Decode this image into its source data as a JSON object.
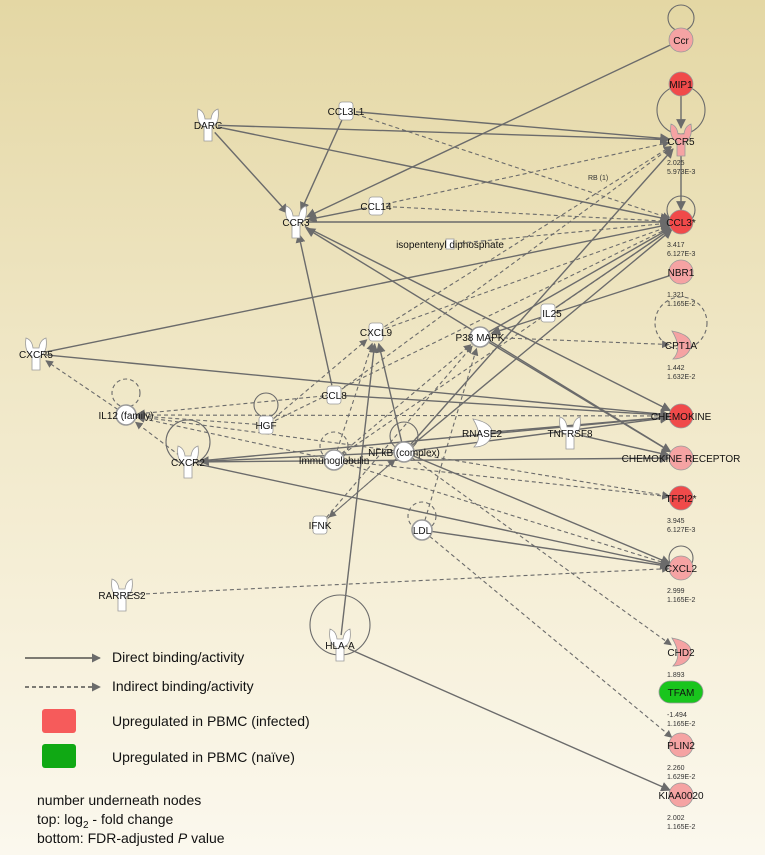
{
  "colors": {
    "upregulated_infected": "#f04a4a",
    "upregulated_infected_light": "#f5a3a3",
    "upregulated_naive": "#19c51d",
    "neutral_node": "#ffffff",
    "edge": "#6b6b6b"
  },
  "nodes": [
    {
      "id": "Ccr",
      "label": "Ccr",
      "shape": "circle",
      "color": "light"
    },
    {
      "id": "MIP1",
      "label": "MIP1",
      "shape": "circle",
      "color": "red"
    },
    {
      "id": "CCR5",
      "label": "CCR5",
      "shape": "receptor",
      "color": "light",
      "values": [
        "2.025",
        "5.973E-3"
      ]
    },
    {
      "id": "CCL3",
      "label": "CCL3*",
      "shape": "circle",
      "color": "red",
      "values": [
        "3.417",
        "6.127E-3"
      ]
    },
    {
      "id": "NBR1",
      "label": "NBR1",
      "shape": "circle",
      "color": "light",
      "values": [
        "1.321",
        "1.165E-2"
      ]
    },
    {
      "id": "CPT1A",
      "label": "CPT1A",
      "shape": "enzyme",
      "color": "light",
      "values": [
        "1.442",
        "1.632E-2"
      ]
    },
    {
      "id": "CHEMOKINE",
      "label": "CHEMOKINE",
      "shape": "circle",
      "color": "red"
    },
    {
      "id": "CHEMR",
      "label": "CHEMOKINE RECEPTOR",
      "shape": "circle",
      "color": "light"
    },
    {
      "id": "TFPI2",
      "label": "TFPI2*",
      "shape": "circle",
      "color": "red",
      "values": [
        "3.945",
        "6.127E-3"
      ]
    },
    {
      "id": "CXCL2",
      "label": "CXCL2",
      "shape": "circle",
      "color": "light",
      "values": [
        "2.999",
        "1.165E-2"
      ]
    },
    {
      "id": "CHD2",
      "label": "CHD2",
      "shape": "enzyme",
      "color": "light",
      "values": [
        "1.893",
        "1.165E-2"
      ]
    },
    {
      "id": "TFAM",
      "label": "TFAM",
      "shape": "pill",
      "color": "green",
      "values": [
        "-1.494",
        "1.165E-2"
      ]
    },
    {
      "id": "PLIN2",
      "label": "PLIN2",
      "shape": "circle",
      "color": "light",
      "values": [
        "2.260",
        "1.629E-2"
      ]
    },
    {
      "id": "KIAA0020",
      "label": "KIAA0020",
      "shape": "circle",
      "color": "light",
      "values": [
        "2.002",
        "1.165E-2"
      ]
    },
    {
      "id": "DARC",
      "label": "DARC",
      "shape": "receptor",
      "color": "white"
    },
    {
      "id": "CCL3L1",
      "label": "CCL3L1",
      "shape": "cytokine",
      "color": "white"
    },
    {
      "id": "CCR3",
      "label": "CCR3",
      "shape": "receptor",
      "color": "white"
    },
    {
      "id": "CCL14",
      "label": "CCL14",
      "shape": "cytokine",
      "color": "white"
    },
    {
      "id": "IPP",
      "label": "isopentenyl diphosphate",
      "shape": "small",
      "color": "white"
    },
    {
      "id": "IL25",
      "label": "IL25",
      "shape": "cytokine",
      "color": "white"
    },
    {
      "id": "CXCL9",
      "label": "CXCL9",
      "shape": "cytokine",
      "color": "white"
    },
    {
      "id": "P38",
      "label": "P38 MAPK",
      "shape": "group",
      "color": "white"
    },
    {
      "id": "CXCR5",
      "label": "CXCR5",
      "shape": "receptor",
      "color": "white"
    },
    {
      "id": "IL12",
      "label": "IL12 (family)",
      "shape": "group",
      "color": "white"
    },
    {
      "id": "CCL8",
      "label": "CCL8",
      "shape": "cytokine",
      "color": "white"
    },
    {
      "id": "HGF",
      "label": "HGF",
      "shape": "cytokine",
      "color": "white"
    },
    {
      "id": "CXCR2",
      "label": "CXCR2",
      "shape": "receptor",
      "color": "white"
    },
    {
      "id": "IG",
      "label": "Immunoglobulin",
      "shape": "group",
      "color": "white"
    },
    {
      "id": "NFKB",
      "label": "NFkB (complex)",
      "shape": "group",
      "color": "white"
    },
    {
      "id": "RNASE2",
      "label": "RNASE2",
      "shape": "enzyme",
      "color": "white"
    },
    {
      "id": "TNFRSF8",
      "label": "TNFRSF8",
      "shape": "receptor",
      "color": "white"
    },
    {
      "id": "IFNK",
      "label": "IFNK",
      "shape": "cytokine",
      "color": "white"
    },
    {
      "id": "LDL",
      "label": "LDL",
      "shape": "group",
      "color": "white"
    },
    {
      "id": "RARRES2",
      "label": "RARRES2",
      "shape": "receptor",
      "color": "white"
    },
    {
      "id": "HLAA",
      "label": "HLA-A",
      "shape": "receptor",
      "color": "white"
    }
  ],
  "edge_annotation": "RB (1)",
  "edges": [
    {
      "from": "Ccr",
      "to": "CCR3",
      "dashed": false
    },
    {
      "from": "MIP1",
      "to": "CCR5",
      "dashed": false
    },
    {
      "from": "CCR5",
      "to": "CCL3",
      "dashed": false
    },
    {
      "from": "DARC",
      "to": "CCR5",
      "dashed": false
    },
    {
      "from": "DARC",
      "to": "CCL3",
      "dashed": false
    },
    {
      "from": "DARC",
      "to": "CCR3",
      "dashed": false
    },
    {
      "from": "CCL3L1",
      "to": "CCR5",
      "dashed": false
    },
    {
      "from": "CCL3L1",
      "to": "CCL3",
      "dashed": true
    },
    {
      "from": "CCL3L1",
      "to": "CCR3",
      "dashed": false
    },
    {
      "from": "CCL14",
      "to": "CCR5",
      "dashed": true
    },
    {
      "from": "CCL14",
      "to": "CCL3",
      "dashed": true
    },
    {
      "from": "CCL14",
      "to": "CCR3",
      "dashed": false
    },
    {
      "from": "CCR3",
      "to": "CCL3",
      "dashed": false
    },
    {
      "from": "CCR3",
      "to": "CHEMOKINE",
      "dashed": false
    },
    {
      "from": "CHEMR",
      "to": "CCR3",
      "dashed": false
    },
    {
      "from": "IPP",
      "to": "CCL3",
      "dashed": true
    },
    {
      "from": "CXCL9",
      "to": "CCR5",
      "dashed": true
    },
    {
      "from": "CXCL9",
      "to": "CCL3",
      "dashed": true
    },
    {
      "from": "P38",
      "to": "CCL3",
      "dashed": false
    },
    {
      "from": "P38",
      "to": "CPT1A",
      "dashed": true
    },
    {
      "from": "NBR1",
      "to": "P38",
      "dashed": false
    },
    {
      "from": "IL25",
      "to": "CCL3",
      "dashed": false
    },
    {
      "from": "CXCR5",
      "to": "CCL3",
      "dashed": false
    },
    {
      "from": "CXCR5",
      "to": "CHEMOKINE",
      "dashed": false
    },
    {
      "from": "IL12",
      "to": "CXCR5",
      "dashed": true
    },
    {
      "from": "IL12",
      "to": "CHEMOKINE",
      "dashed": true
    },
    {
      "from": "CCL8",
      "to": "IL12",
      "dashed": true
    },
    {
      "from": "CCL8",
      "to": "CCR3",
      "dashed": false
    },
    {
      "from": "CCL8",
      "to": "CCR5",
      "dashed": true
    },
    {
      "from": "CCL8",
      "to": "CHEMOKINE",
      "dashed": false
    },
    {
      "from": "HGF",
      "to": "IL12",
      "dashed": true
    },
    {
      "from": "HGF",
      "to": "CXCL9",
      "dashed": true
    },
    {
      "from": "HGF",
      "to": "CCL3",
      "dashed": true
    },
    {
      "from": "CXCR2",
      "to": "CXCL2",
      "dashed": false
    },
    {
      "from": "CXCR2",
      "to": "CHEMOKINE",
      "dashed": false
    },
    {
      "from": "CXCR2",
      "to": "CHEMR",
      "dashed": false
    },
    {
      "from": "IG",
      "to": "CCL3",
      "dashed": true
    },
    {
      "from": "IG",
      "to": "CXCL9",
      "dashed": true
    },
    {
      "from": "IG",
      "to": "CXCL2",
      "dashed": true
    },
    {
      "from": "IG",
      "to": "IL12",
      "dashed": true
    },
    {
      "from": "IG",
      "to": "P38",
      "dashed": true
    },
    {
      "from": "NFKB",
      "to": "CCL3",
      "dashed": false
    },
    {
      "from": "NFKB",
      "to": "CCR5",
      "dashed": false
    },
    {
      "from": "NFKB",
      "to": "CXCL9",
      "dashed": false
    },
    {
      "from": "NFKB",
      "to": "CHEMOKINE",
      "dashed": false
    },
    {
      "from": "NFKB",
      "to": "TFPI2",
      "dashed": true
    },
    {
      "from": "NFKB",
      "to": "CXCL2",
      "dashed": false
    },
    {
      "from": "NFKB",
      "to": "IL12",
      "dashed": true
    },
    {
      "from": "NFKB",
      "to": "CXCR2",
      "dashed": false
    },
    {
      "from": "NFKB",
      "to": "CHD2",
      "dashed": true
    },
    {
      "from": "NFKB",
      "to": "IFNK",
      "dashed": true
    },
    {
      "from": "RNASE2",
      "to": "CHEMOKINE",
      "dashed": false
    },
    {
      "from": "TNFRSF8",
      "to": "CHEMR",
      "dashed": false
    },
    {
      "from": "IFNK",
      "to": "P38",
      "dashed": true
    },
    {
      "from": "IFNK",
      "to": "NFKB",
      "dashed": true
    },
    {
      "from": "LDL",
      "to": "P38",
      "dashed": true
    },
    {
      "from": "LDL",
      "to": "CXCL2",
      "dashed": false
    },
    {
      "from": "LDL",
      "to": "PLIN2",
      "dashed": true
    },
    {
      "from": "RARRES2",
      "to": "CXCL2",
      "dashed": true
    },
    {
      "from": "HLAA",
      "to": "CXCL9",
      "dashed": false
    },
    {
      "from": "HLAA",
      "to": "KIAA0020",
      "dashed": false
    },
    {
      "from": "P38",
      "to": "CHEMR",
      "dashed": false
    },
    {
      "from": "CXCR2",
      "to": "IL12",
      "dashed": true
    },
    {
      "from": "IG",
      "to": "TFPI2",
      "dashed": true
    }
  ],
  "legend": {
    "direct_label": "Direct binding/activity",
    "indirect_label": "Indirect binding/activity",
    "up_infected_label": "Upregulated in PBMC (infected)",
    "up_naive_label": "Upregulated in PBMC (naïve)"
  },
  "notes": {
    "line1": "number underneath nodes",
    "line2_prefix": "top: log",
    "line2_sub": "2",
    "line2_suffix": " - fold change",
    "line3_prefix": "bottom: FDR-adjusted ",
    "line3_p": "P",
    "line3_suffix": " value"
  }
}
